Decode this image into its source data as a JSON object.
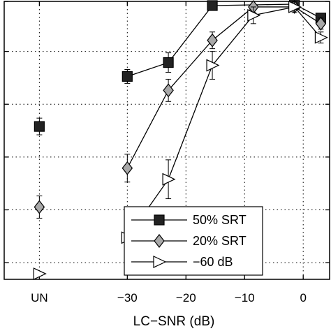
{
  "chart_data": {
    "type": "line",
    "xlabel": "LC−SNR (dB)",
    "ylabel": "",
    "title": "",
    "x_tick_labels": [
      {
        "x": -45,
        "label": "UN"
      },
      {
        "x": -30,
        "label": "−30"
      },
      {
        "x": -20,
        "label": "−20"
      },
      {
        "x": -10,
        "label": "−10"
      },
      {
        "x": 0,
        "label": "0"
      }
    ],
    "xlim": [
      -51,
      4.5
    ],
    "ylim": [
      0,
      100
    ],
    "y_grid": [
      6,
      25,
      44,
      63,
      82,
      100
    ],
    "grid": "dotted",
    "legend_position": "lower-right",
    "series": [
      {
        "name": "50% SRT",
        "marker": "square",
        "marker_fill": "#222222",
        "unprocessed": {
          "x": -45,
          "y": 55,
          "err": 3
        },
        "points": [
          {
            "x": -30,
            "y": 73,
            "err": 2.5
          },
          {
            "x": -23,
            "y": 78,
            "err": 3.5
          },
          {
            "x": -15.5,
            "y": 98.5,
            "err": 0
          },
          {
            "x": -1.5,
            "y": 99,
            "err": 0
          },
          {
            "x": 3,
            "y": 94,
            "err": 1
          }
        ]
      },
      {
        "name": "20% SRT",
        "marker": "diamond",
        "marker_fill": "#a8a8a8",
        "unprocessed": {
          "x": -45,
          "y": 26,
          "err": 4
        },
        "points": [
          {
            "x": -30,
            "y": 40,
            "err": 5
          },
          {
            "x": -23,
            "y": 68,
            "err": 4
          },
          {
            "x": -15.5,
            "y": 86,
            "err": 3
          },
          {
            "x": -8.5,
            "y": 98,
            "err": 2
          },
          {
            "x": -1.5,
            "y": 98,
            "err": 0
          },
          {
            "x": 3,
            "y": 92,
            "err": 2
          }
        ]
      },
      {
        "name": "−60 dB",
        "marker": "triangle-right",
        "marker_fill": "#ffffff",
        "unprocessed": {
          "x": -45,
          "y": 2,
          "err": 0
        },
        "points": [
          {
            "x": -30,
            "y": 15,
            "err": 4
          },
          {
            "x": -23,
            "y": 36,
            "err": 7
          },
          {
            "x": -15.5,
            "y": 77,
            "err": 5
          },
          {
            "x": -8.5,
            "y": 95,
            "err": 3
          },
          {
            "x": -1.5,
            "y": 98,
            "err": 2
          },
          {
            "x": 3,
            "y": 87,
            "err": 2
          }
        ]
      }
    ]
  }
}
